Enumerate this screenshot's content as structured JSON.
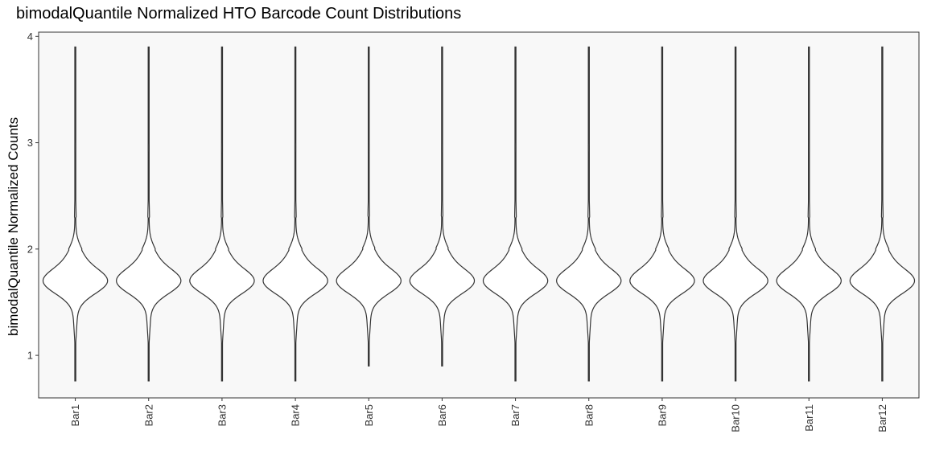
{
  "chart_data": {
    "type": "violin",
    "title": "bimodalQuantile Normalized HTO Barcode Count Distributions",
    "xlabel": "",
    "ylabel": "bimodalQuantile Normalized Counts",
    "ylim": [
      0.6,
      4.04
    ],
    "yticks": [
      1,
      2,
      3,
      4
    ],
    "grid": false,
    "panel_background": "#f8f8f8",
    "line_color": "#333333",
    "categories": [
      "Bar1",
      "Bar2",
      "Bar3",
      "Bar4",
      "Bar5",
      "Bar6",
      "Bar7",
      "Bar8",
      "Bar9",
      "Bar10",
      "Bar11",
      "Bar12"
    ],
    "series": [
      {
        "category": "Bar1",
        "min": 0.76,
        "max": 3.9,
        "mode": 1.7
      },
      {
        "category": "Bar2",
        "min": 0.76,
        "max": 3.9,
        "mode": 1.7
      },
      {
        "category": "Bar3",
        "min": 0.76,
        "max": 3.9,
        "mode": 1.7
      },
      {
        "category": "Bar4",
        "min": 0.76,
        "max": 3.9,
        "mode": 1.7
      },
      {
        "category": "Bar5",
        "min": 0.9,
        "max": 3.9,
        "mode": 1.7
      },
      {
        "category": "Bar6",
        "min": 0.9,
        "max": 3.9,
        "mode": 1.7
      },
      {
        "category": "Bar7",
        "min": 0.76,
        "max": 3.9,
        "mode": 1.7
      },
      {
        "category": "Bar8",
        "min": 0.76,
        "max": 3.9,
        "mode": 1.7
      },
      {
        "category": "Bar9",
        "min": 0.76,
        "max": 3.9,
        "mode": 1.7
      },
      {
        "category": "Bar10",
        "min": 0.76,
        "max": 3.9,
        "mode": 1.7
      },
      {
        "category": "Bar11",
        "min": 0.76,
        "max": 3.9,
        "mode": 1.7
      },
      {
        "category": "Bar12",
        "min": 0.76,
        "max": 3.9,
        "mode": 1.7
      }
    ]
  }
}
